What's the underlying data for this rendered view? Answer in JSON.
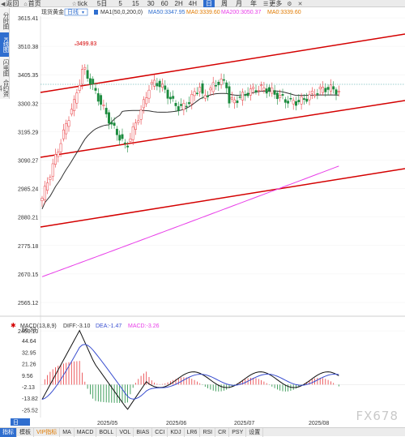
{
  "topbar": {
    "back_label": "返回",
    "home_label": "首页",
    "favorite_label": "tick",
    "periods": [
      "5日",
      "5",
      "15",
      "30",
      "60",
      "2H",
      "4H",
      "日",
      "周",
      "月",
      "年"
    ],
    "more_label": "更多"
  },
  "left_rail": [
    "分时图",
    "K线图",
    "闪电图",
    "合约资料"
  ],
  "main_legend": {
    "symbol": "现货黄金",
    "period": "日线",
    "ma1": "MA1(50,0,200,0)",
    "ma50": "MA50:3347.95",
    "ma0a": "MA0:3339.60",
    "ma200": "MA200:3050.37",
    "ma0b": "MA0:3339.60"
  },
  "price_axis": [
    "3615.41",
    "3510.38",
    "3405.35",
    "3300.32",
    "3195.29",
    "3090.27",
    "2985.24",
    "2880.21",
    "2775.18",
    "2670.15",
    "2565.12",
    "2460.10"
  ],
  "annotation_high": "3499.83",
  "macd_legend": {
    "name": "MACD(13,8,9)",
    "diff": "DIFF:-3.10",
    "dea": "DEA:-1.47",
    "macd": "MACD:-3.26"
  },
  "macd_axis": [
    "56.33",
    "44.64",
    "32.95",
    "21.26",
    "9.56",
    "-2.13",
    "-13.82",
    "-25.52"
  ],
  "date_axis": [
    "2025/05",
    "2025/06",
    "2025/07",
    "2025/08"
  ],
  "bottombar": [
    "指标",
    "模板",
    "VIP指标",
    "MA",
    "MACD",
    "BOLL",
    "VOL",
    "BIAS",
    "CCI",
    "KDJ",
    "LR6",
    "RSI",
    "CR",
    "PSY",
    "设置"
  ],
  "watermark": "FX678",
  "colors": {
    "up": "#e8383d",
    "down": "#1a8a3c",
    "ma50": "#333333",
    "ma200": "#e83ee8",
    "channel": "#d40000",
    "diff": "#111111",
    "dea": "#3a4fd0",
    "accent": "#2f6ecf"
  }
}
